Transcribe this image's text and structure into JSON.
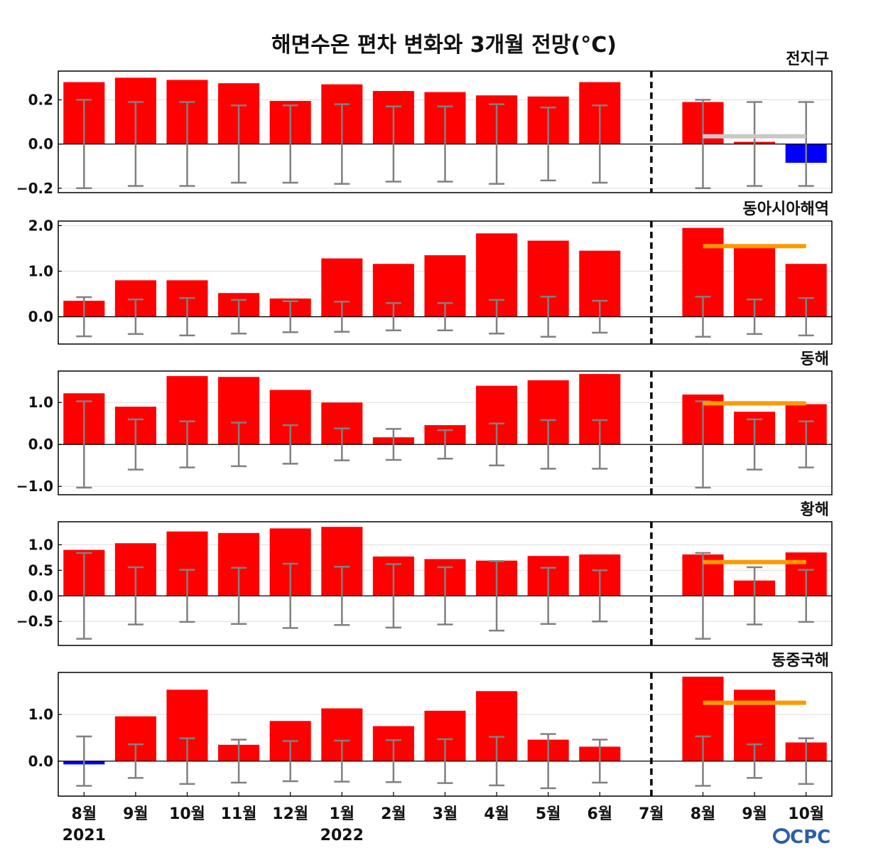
{
  "title": "해면수온 편차 변화와 3개월 전망(°C)",
  "logo_text": "CPC",
  "colors": {
    "bar_positive": "#ff0000",
    "bar_negative": "#0000ff",
    "error_bar": "#808080",
    "forecast_global": "#c8c8c8",
    "forecast_regional": "#ff9900",
    "divider": "#000000",
    "logo": "#2b5ea8"
  },
  "months": [
    "8월",
    "9월",
    "10월",
    "11월",
    "12월",
    "1월",
    "2월",
    "3월",
    "4월",
    "5월",
    "6월",
    "7월",
    "8월",
    "9월",
    "10월"
  ],
  "years": [
    {
      "label": "2021",
      "under_month_index": 0
    },
    {
      "label": "2022",
      "under_month_index": 5
    }
  ],
  "current_month_index": 11,
  "chart_data": [
    {
      "type": "bar",
      "title": "전지구",
      "ylim": [
        -0.22,
        0.33
      ],
      "yticks": [
        -0.2,
        0.0,
        0.2
      ],
      "ytick_labels": [
        "−0.2",
        "0.0",
        "0.2"
      ],
      "values": [
        0.28,
        0.3,
        0.29,
        0.275,
        0.195,
        0.27,
        0.24,
        0.235,
        0.22,
        0.215,
        0.28,
        0.0,
        0.19,
        0.01,
        -0.085
      ],
      "error_upper": [
        0.2,
        0.19,
        0.19,
        0.175,
        0.175,
        0.18,
        0.17,
        0.17,
        0.18,
        0.165,
        0.175,
        null,
        0.2,
        0.19,
        0.19
      ],
      "error_lower": [
        -0.2,
        -0.19,
        -0.19,
        -0.175,
        -0.175,
        -0.18,
        -0.17,
        -0.17,
        -0.18,
        -0.165,
        -0.175,
        null,
        -0.2,
        -0.19,
        -0.19
      ],
      "forecast_line": {
        "value": 0.035,
        "from_index": 12,
        "to_index": 14,
        "color": "#c8c8c8"
      }
    },
    {
      "type": "bar",
      "title": "동아시아해역",
      "ylim": [
        -0.6,
        2.1
      ],
      "yticks": [
        0.0,
        1.0,
        2.0
      ],
      "ytick_labels": [
        "0.0",
        "1.0",
        "2.0"
      ],
      "values": [
        0.35,
        0.8,
        0.8,
        0.52,
        0.4,
        1.28,
        1.16,
        1.35,
        1.83,
        1.67,
        1.45,
        0.0,
        1.95,
        1.55,
        1.16
      ],
      "error_upper": [
        0.43,
        0.38,
        0.41,
        0.37,
        0.34,
        0.33,
        0.3,
        0.3,
        0.37,
        0.44,
        0.35,
        null,
        0.44,
        0.38,
        0.41
      ],
      "error_lower": [
        -0.43,
        -0.38,
        -0.41,
        -0.37,
        -0.34,
        -0.33,
        -0.3,
        -0.3,
        -0.37,
        -0.44,
        -0.35,
        null,
        -0.44,
        -0.38,
        -0.41
      ],
      "forecast_line": {
        "value": 1.55,
        "from_index": 12,
        "to_index": 14,
        "color": "#ff9900"
      }
    },
    {
      "type": "bar",
      "title": "동해",
      "ylim": [
        -1.2,
        1.75
      ],
      "yticks": [
        -1.0,
        0.0,
        1.0
      ],
      "ytick_labels": [
        "−1.0",
        "0.0",
        "1.0"
      ],
      "values": [
        1.22,
        0.9,
        1.63,
        1.61,
        1.3,
        1.0,
        0.17,
        0.46,
        1.4,
        1.53,
        1.68,
        0.0,
        1.19,
        0.78,
        0.96
      ],
      "error_upper": [
        1.03,
        0.6,
        0.55,
        0.52,
        0.46,
        0.38,
        0.37,
        0.34,
        0.5,
        0.58,
        0.58,
        null,
        1.03,
        0.6,
        0.55
      ],
      "error_lower": [
        -1.03,
        -0.6,
        -0.55,
        -0.52,
        -0.46,
        -0.38,
        -0.37,
        -0.34,
        -0.5,
        -0.58,
        -0.58,
        null,
        -1.03,
        -0.6,
        -0.55
      ],
      "forecast_line": {
        "value": 0.98,
        "from_index": 12,
        "to_index": 14,
        "color": "#ff9900"
      }
    },
    {
      "type": "bar",
      "title": "황해",
      "ylim": [
        -0.97,
        1.45
      ],
      "yticks": [
        -0.5,
        0.0,
        0.5,
        1.0
      ],
      "ytick_labels": [
        "−0.5",
        "0.0",
        "0.5",
        "1.0"
      ],
      "values": [
        0.9,
        1.03,
        1.26,
        1.23,
        1.32,
        1.35,
        0.77,
        0.72,
        0.69,
        0.78,
        0.81,
        0.0,
        0.81,
        0.3,
        0.85
      ],
      "error_upper": [
        0.84,
        0.56,
        0.51,
        0.55,
        0.63,
        0.57,
        0.62,
        0.56,
        0.68,
        0.55,
        0.5,
        null,
        0.84,
        0.56,
        0.51
      ],
      "error_lower": [
        -0.84,
        -0.56,
        -0.51,
        -0.55,
        -0.63,
        -0.57,
        -0.62,
        -0.56,
        -0.68,
        -0.55,
        -0.5,
        null,
        -0.84,
        -0.56,
        -0.51
      ],
      "forecast_line": {
        "value": 0.66,
        "from_index": 12,
        "to_index": 14,
        "color": "#ff9900"
      }
    },
    {
      "type": "bar",
      "title": "동중국해",
      "ylim": [
        -0.75,
        1.9
      ],
      "yticks": [
        0.0,
        1.0
      ],
      "ytick_labels": [
        "0.0",
        "1.0"
      ],
      "values": [
        -0.07,
        0.96,
        1.53,
        0.35,
        0.86,
        1.13,
        0.75,
        1.08,
        1.5,
        0.46,
        0.31,
        0.0,
        1.81,
        1.53,
        0.4
      ],
      "error_upper": [
        0.53,
        0.36,
        0.49,
        0.46,
        0.43,
        0.44,
        0.45,
        0.47,
        0.52,
        0.58,
        0.46,
        null,
        0.53,
        0.36,
        0.49
      ],
      "error_lower": [
        -0.53,
        -0.36,
        -0.49,
        -0.46,
        -0.43,
        -0.44,
        -0.45,
        -0.47,
        -0.52,
        -0.58,
        -0.46,
        null,
        -0.53,
        -0.36,
        -0.49
      ],
      "forecast_line": {
        "value": 1.25,
        "from_index": 12,
        "to_index": 14,
        "color": "#ff9900"
      }
    }
  ]
}
